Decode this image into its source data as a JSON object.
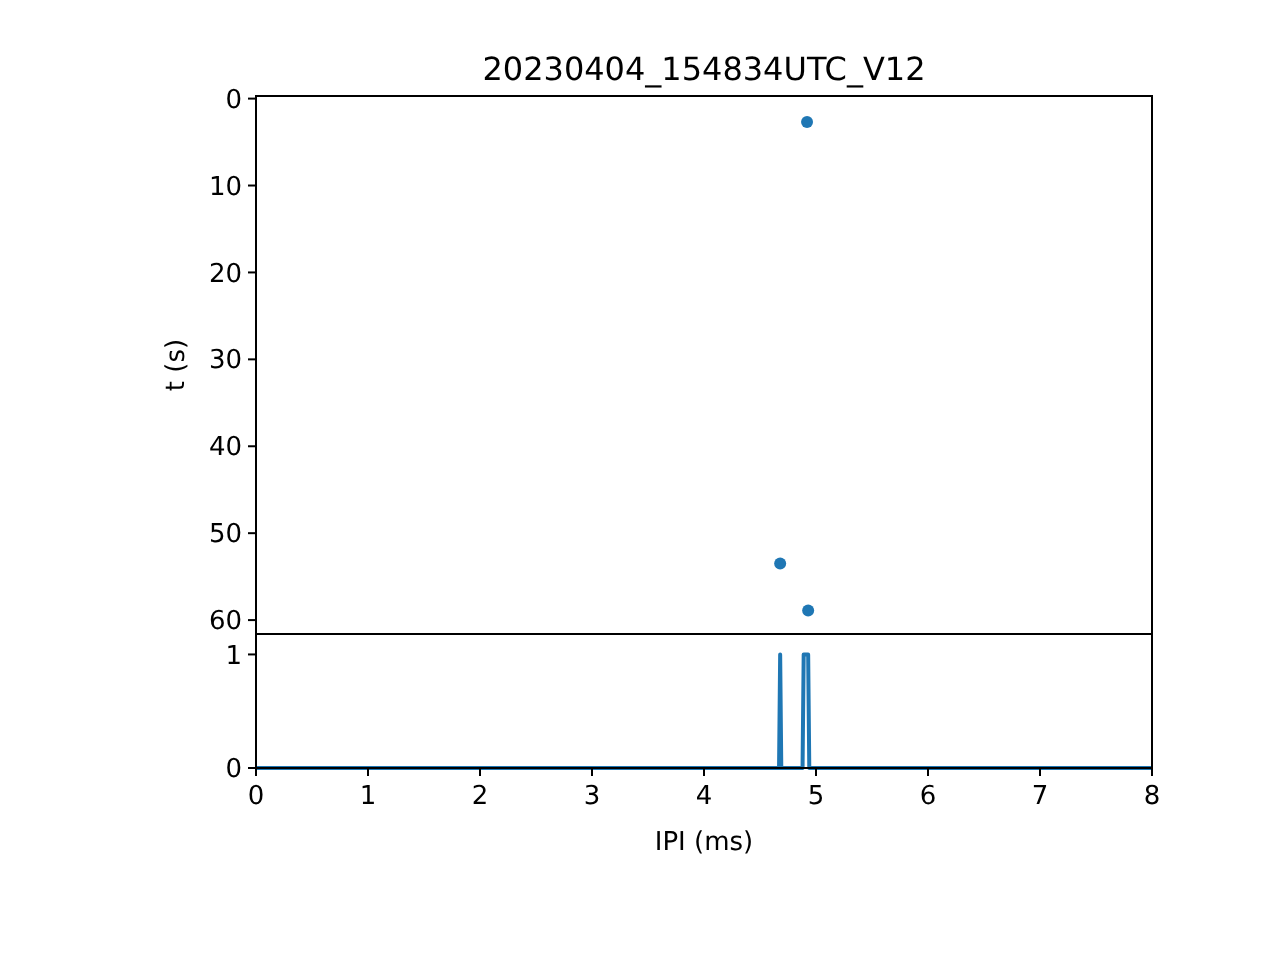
{
  "chart_data": [
    {
      "type": "scatter",
      "title": "20230404_154834UTC_V12",
      "ylabel": "t (s)",
      "x": [
        4.92,
        4.68,
        4.93
      ],
      "series": [
        {
          "color": "#1f77b4",
          "values": [
            2.7,
            53.5,
            58.9
          ]
        }
      ],
      "xlim": [
        0,
        8
      ],
      "ylim": [
        61.6,
        -0.3
      ],
      "yticks": [
        0,
        10,
        20,
        30,
        40,
        50,
        60
      ],
      "tick_labels": "y",
      "marker": "circle"
    },
    {
      "type": "line",
      "xlabel": "IPI (ms)",
      "x": [
        0,
        4.67,
        4.68,
        4.69,
        4.88,
        4.89,
        4.93,
        4.94,
        8
      ],
      "series": [
        {
          "color": "#1f77b4",
          "values": [
            0,
            0,
            1,
            0,
            0,
            1,
            1,
            0,
            0
          ]
        }
      ],
      "xlim": [
        0,
        8
      ],
      "xticks": [
        0,
        1,
        2,
        3,
        4,
        5,
        6,
        7,
        8
      ],
      "ylim": [
        0,
        1.18
      ],
      "yticks": [
        0,
        1
      ],
      "line_style": "solid"
    }
  ]
}
